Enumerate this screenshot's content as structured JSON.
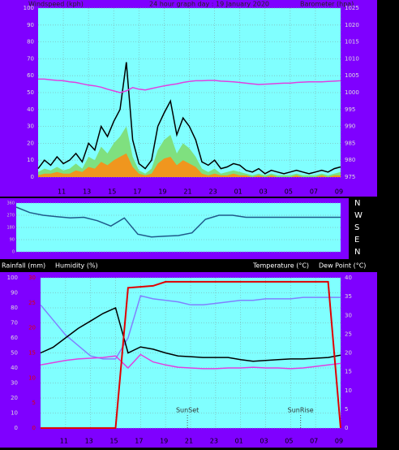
{
  "chart_data": [
    {
      "type": "line",
      "title": "24 hour graph day : 19 January 2020",
      "ylabel": "Windspeed (kph)",
      "y2label": "Barometer (hpa)",
      "grid": true,
      "x": [
        9,
        9.5,
        10,
        10.5,
        11,
        11.5,
        12,
        12.5,
        13,
        13.5,
        14,
        14.5,
        15,
        15.5,
        16,
        16.5,
        17,
        17.5,
        18,
        18.5,
        19,
        19.5,
        20,
        20.5,
        21,
        21.5,
        22,
        22.5,
        23,
        23.5,
        24,
        24.5,
        25,
        25.5,
        26,
        26.5,
        27,
        27.5,
        28,
        28.5,
        29,
        29.5,
        30,
        30.5,
        31,
        31.5,
        32,
        32.5,
        33
      ],
      "xlim": [
        9,
        33
      ],
      "xticks": [
        11,
        13,
        15,
        17,
        19,
        21,
        23,
        {
          "value": 25,
          "label": "01"
        },
        {
          "value": 27,
          "label": "03"
        },
        {
          "value": 29,
          "label": "05"
        },
        {
          "value": 31,
          "label": "07"
        },
        {
          "value": 33,
          "label": "09"
        }
      ],
      "ylim": [
        0,
        100
      ],
      "yticks": [
        0,
        10,
        20,
        30,
        40,
        50,
        60,
        70,
        80,
        90,
        100
      ],
      "y2lim": [
        975,
        1025
      ],
      "y2ticks": [
        975,
        980,
        985,
        990,
        995,
        1000,
        1005,
        1010,
        1015,
        1020,
        1025
      ],
      "series": [
        {
          "type": "area",
          "color": "#7fe07f",
          "values": [
            3,
            5,
            4,
            6,
            4,
            5,
            8,
            5,
            12,
            10,
            18,
            14,
            20,
            24,
            30,
            12,
            4,
            2,
            5,
            16,
            22,
            25,
            14,
            20,
            17,
            12,
            5,
            3,
            5,
            2,
            3,
            4,
            3,
            2,
            1,
            2,
            1,
            2,
            1,
            1,
            1,
            2,
            1,
            1,
            1,
            2,
            1,
            2,
            3
          ]
        },
        {
          "type": "area",
          "color": "#f0961e",
          "values": [
            1,
            2,
            2,
            3,
            2,
            2,
            4,
            3,
            6,
            5,
            9,
            7,
            10,
            12,
            14,
            6,
            2,
            1,
            2,
            8,
            11,
            12,
            7,
            10,
            8,
            6,
            2,
            1,
            2,
            1,
            1,
            2,
            1,
            1,
            0,
            1,
            0,
            1,
            0,
            0,
            0,
            1,
            0,
            0,
            0,
            1,
            0,
            1,
            1
          ]
        },
        {
          "type": "line",
          "color": "#000000",
          "values": [
            5,
            10,
            7,
            12,
            8,
            10,
            14,
            9,
            20,
            16,
            30,
            24,
            33,
            40,
            68,
            22,
            8,
            5,
            10,
            30,
            38,
            45,
            25,
            35,
            30,
            22,
            9,
            7,
            10,
            5,
            6,
            8,
            7,
            4,
            3,
            5,
            2,
            4,
            3,
            2,
            3,
            4,
            3,
            2,
            3,
            4,
            3,
            5,
            6
          ]
        },
        {
          "type": "line",
          "color": "#e040e0",
          "axis": "y2",
          "values": [
            1004,
            1004,
            1003.8,
            1003.6,
            1003.5,
            1003.2,
            1003,
            1002.6,
            1002.2,
            1002,
            1001.6,
            1001,
            1000.5,
            1000,
            1000.5,
            1001.5,
            1001,
            1000.8,
            1001.2,
            1001.6,
            1002,
            1002.3,
            1002.6,
            1003,
            1003.3,
            1003.5,
            1003.5,
            1003.6,
            1003.6,
            1003.4,
            1003.3,
            1003.2,
            1003,
            1002.8,
            1002.6,
            1002.4,
            1002.5,
            1002.6,
            1002.7,
            1002.8,
            1002.8,
            1003,
            1003.1,
            1003.2,
            1003.2,
            1003.2,
            1003.3,
            1003.4,
            1003.5
          ]
        }
      ]
    },
    {
      "type": "line",
      "grid": true,
      "x": [
        9,
        10,
        11,
        12,
        13,
        14,
        15,
        16,
        17,
        18,
        19,
        20,
        21,
        22,
        23,
        24,
        25,
        26,
        27,
        28,
        29,
        30,
        31,
        32,
        33
      ],
      "xlim": [
        9,
        33
      ],
      "ylim": [
        0,
        360
      ],
      "yticks": [
        0,
        90,
        180,
        270,
        360
      ],
      "y2lim": [
        0,
        360
      ],
      "y2ticks": [
        {
          "value": 360,
          "label": "N"
        },
        {
          "value": 270,
          "label": "W"
        },
        {
          "value": 180,
          "label": "S"
        },
        {
          "value": 90,
          "label": "E"
        },
        {
          "value": 0,
          "label": "N"
        }
      ],
      "series": [
        {
          "type": "line",
          "color": "#1f5a8a",
          "values": [
            330,
            290,
            270,
            260,
            250,
            255,
            230,
            190,
            250,
            130,
            110,
            115,
            120,
            140,
            240,
            270,
            270,
            255,
            255,
            255,
            255,
            255,
            255,
            255,
            255
          ]
        }
      ]
    },
    {
      "type": "line",
      "ylabel": "Humidity (%)",
      "y3label": "Rainfall (mm)",
      "y2labels": [
        "Temperature (°C)",
        "Dew Point (°C)"
      ],
      "grid": true,
      "x": [
        9,
        10,
        11,
        12,
        13,
        14,
        15,
        16,
        17,
        18,
        19,
        20,
        21,
        22,
        23,
        24,
        25,
        26,
        27,
        28,
        29,
        30,
        31,
        32,
        33
      ],
      "xlim": [
        9,
        33
      ],
      "xticks": [
        11,
        13,
        15,
        17,
        19,
        21,
        23,
        {
          "value": 25,
          "label": "01"
        },
        {
          "value": 27,
          "label": "03"
        },
        {
          "value": 29,
          "label": "05"
        },
        {
          "value": 31,
          "label": "07"
        },
        {
          "value": 33,
          "label": "09"
        }
      ],
      "ylim": [
        0,
        100
      ],
      "yticks": [
        0,
        10,
        20,
        30,
        40,
        50,
        60,
        70,
        80,
        90,
        100
      ],
      "y2lim": [
        0,
        40
      ],
      "y2ticks": [
        0,
        5,
        10,
        15,
        20,
        25,
        30,
        35,
        40
      ],
      "y3lim": [
        0,
        30
      ],
      "y3ticks": [
        0,
        5,
        10,
        15,
        20,
        25,
        30
      ],
      "series": [
        {
          "type": "line",
          "color": "#8080ff",
          "values": [
            82,
            72,
            62,
            55,
            48,
            46,
            46,
            60,
            88,
            86,
            85,
            84,
            82,
            82,
            83,
            84,
            85,
            85,
            86,
            86,
            86,
            87,
            87,
            87,
            87
          ]
        },
        {
          "type": "line",
          "color": "#e040e0",
          "axis": "y2",
          "values": [
            16.8,
            17.4,
            18,
            18.4,
            18.6,
            18.8,
            19.2,
            16,
            19.6,
            17.6,
            16.8,
            16.2,
            16,
            15.8,
            15.8,
            16,
            16,
            16.2,
            16,
            16,
            15.8,
            16,
            16.4,
            16.8,
            17.2
          ]
        },
        {
          "type": "line",
          "color": "#000000",
          "axis": "y2",
          "values": [
            20,
            21.5,
            24,
            26.5,
            28.5,
            30.5,
            32,
            20,
            21.6,
            21,
            20,
            19.2,
            19,
            18.8,
            18.8,
            18.8,
            18.2,
            17.8,
            18,
            18.2,
            18.4,
            18.4,
            18.6,
            18.8,
            19.4
          ]
        },
        {
          "type": "line",
          "color": "#e00000",
          "axis": "y3",
          "values": [
            0,
            0,
            0,
            0,
            0,
            0,
            0,
            28,
            28.2,
            28.4,
            29.2,
            29.2,
            29.2,
            29.2,
            29.2,
            29.2,
            29.2,
            29.2,
            29.2,
            29.2,
            29.2,
            29.2,
            29.2,
            29.2,
            0
          ]
        }
      ],
      "annotations": [
        {
          "text": "SunSet",
          "x": 20.75
        },
        {
          "text": "SunRise",
          "x": 29.8
        }
      ]
    }
  ]
}
